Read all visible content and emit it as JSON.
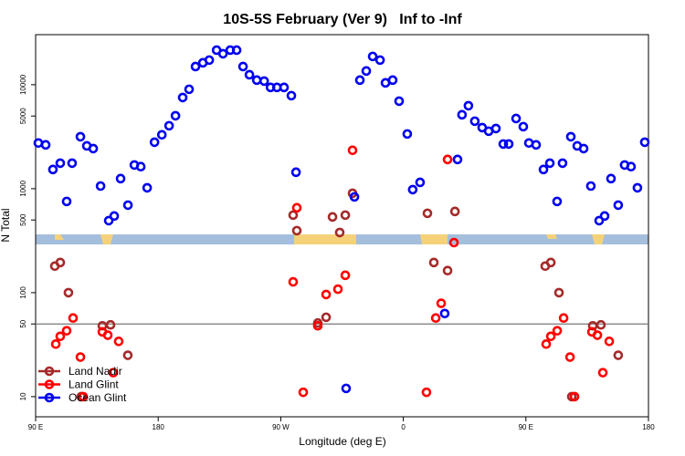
{
  "chart_data": {
    "type": "scatter",
    "title": "10S-5S February (Ver 9)   Inf to -Inf",
    "x_label": "Longitude (deg E)",
    "y_label": "N Total",
    "log_y": true,
    "legend": "bottom-left",
    "hline": 50,
    "xlim": [
      90,
      540
    ],
    "xticks": [
      {
        "value": 90,
        "label": "90 E"
      },
      180,
      {
        "value": 270,
        "label": "90 W"
      },
      {
        "value": 360,
        "label": "0"
      },
      {
        "value": 450,
        "label": "90 E"
      },
      {
        "value": 540,
        "label": "180"
      }
    ],
    "ylim": [
      6.4,
      30300
    ],
    "yticks": [
      10,
      50,
      100,
      500,
      1000,
      5000,
      10000
    ],
    "series": [
      {
        "name": "Land Nadir",
        "color": "#a52a2a",
        "x": [
          104.1,
          108.1,
          114.1,
          123.5,
          139,
          145,
          157.7,
          279.1,
          281.8,
          297.2,
          303.3,
          308,
          313.3,
          317.4,
          322.7,
          377.7,
          382.4,
          392.5,
          397.9,
          464.2,
          468.3,
          474.3,
          483.7,
          499.1,
          505.1,
          517.8
        ],
        "values": [
          180,
          195,
          100,
          10,
          48,
          49,
          25,
          557,
          395,
          51,
          58,
          535,
          379,
          557,
          904,
          580,
          195,
          163,
          604,
          180,
          195,
          100,
          10,
          48,
          49,
          25
        ]
      },
      {
        "name": "Land Glint",
        "color": "#ff0000",
        "x": [
          104.8,
          108.1,
          112.8,
          117.5,
          122.9,
          124.9,
          139,
          143,
          147,
          151,
          279.1,
          281.8,
          286.5,
          297.2,
          303.3,
          312,
          317.4,
          322.7,
          377,
          383.8,
          387.8,
          392.5,
          397.2,
          464.9,
          468.3,
          473,
          477.7,
          482.4,
          485.7,
          498.5,
          502.5,
          506.5,
          511.2
        ],
        "values": [
          32,
          38,
          43,
          57,
          24,
          10,
          42,
          39,
          17,
          34,
          127,
          655,
          11,
          48,
          96,
          108,
          147,
          2340,
          11,
          57,
          79,
          1910,
          303,
          32,
          38,
          43,
          57,
          24,
          10,
          42,
          39,
          17,
          34
        ]
      },
      {
        "name": "Ocean Glint",
        "color": "#0000ee",
        "x": [
          92,
          97.4,
          102.7,
          108.1,
          112.8,
          116.8,
          122.9,
          127.6,
          132.3,
          137.7,
          143.7,
          147.7,
          152.4,
          157.8,
          162.5,
          167.2,
          171.9,
          177.3,
          182.7,
          188,
          192.7,
          198,
          202.7,
          207.4,
          212.8,
          217.5,
          222.9,
          227.6,
          232.9,
          237.6,
          242.3,
          247,
          252.4,
          257.8,
          262.5,
          267.2,
          272.4,
          277.8,
          281.2,
          324.1,
          318,
          328.1,
          332.8,
          337.5,
          342.9,
          346.9,
          352.2,
          356.9,
          362.9,
          366.9,
          372.3,
          390.4,
          399.8,
          403.1,
          407.8,
          412.5,
          417.9,
          422.7,
          428,
          433.4,
          437.4,
          442.8,
          448.1,
          452.2,
          457.5,
          462.9,
          467.6,
          472.9,
          476.9,
          483,
          487.7,
          492.4,
          497.7,
          503.8,
          507.8,
          512.5,
          517.8,
          522.5,
          527.2,
          531.9,
          537.3
        ],
        "values": [
          2750,
          2640,
          1530,
          1760,
          754,
          1760,
          3160,
          2580,
          2430,
          1060,
          493,
          546,
          1250,
          695,
          1690,
          1630,
          1020,
          2800,
          3300,
          4030,
          5030,
          7530,
          9040,
          14960,
          16250,
          17260,
          21500,
          19860,
          21500,
          21500,
          14960,
          12470,
          11070,
          10840,
          9420,
          9420,
          9420,
          7850,
          1440,
          834,
          12,
          11070,
          13550,
          18710,
          17260,
          10420,
          11070,
          6950,
          3360,
          980,
          1150,
          63,
          1910,
          5140,
          6280,
          4460,
          3870,
          3570,
          3790,
          2690,
          2690,
          4730,
          3950,
          2750,
          2640,
          1530,
          1760,
          754,
          1760,
          3160,
          2580,
          2430,
          1060,
          493,
          546,
          1250,
          695,
          1690,
          1630,
          1020,
          2800
        ]
      }
    ]
  }
}
